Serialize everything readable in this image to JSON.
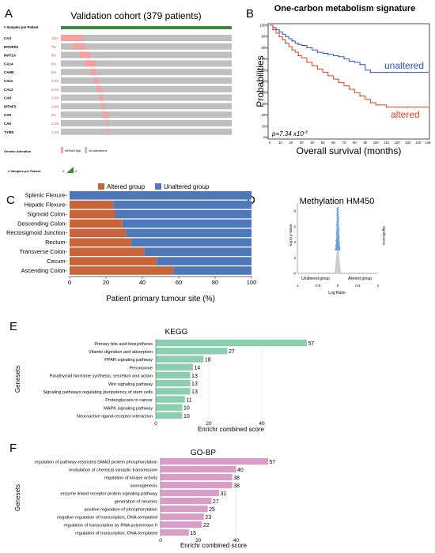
{
  "panel_labels": {
    "a": "A",
    "b": "B",
    "c": "C",
    "d": "D",
    "e": "E",
    "f": "F"
  },
  "colors": {
    "oncoprint_track": "#bfbfbf",
    "alteration": "#f4a0a0",
    "cohort_bar": "#3a8c3a",
    "altered": "#d9411e",
    "unaltered": "#2b52b5",
    "c_altered": "#c8643a",
    "c_unaltered": "#4f78b8",
    "d_points": "#6aa0d8",
    "d_funnel": "#cccccc",
    "kegg_bar": "#8ccfb0",
    "gobp_bar": "#d89ec8"
  },
  "chart_data": [
    {
      "panel": "A",
      "type": "table",
      "title": "Validation cohort (379 patients)",
      "header_label": "# Samples per Patient",
      "genes": [
        "CA3",
        "MTHFD2",
        "MAT1A",
        "CA14",
        "CA5B",
        "CA11",
        "CA12",
        "CA8",
        "MTHFS",
        "CA9",
        "CA6",
        "TYMS"
      ],
      "percentages": [
        "13%",
        "7%",
        "6%",
        "6%",
        "3%",
        "2.9%",
        "2.9%",
        "2.4%",
        "1.8%",
        "3%",
        "1.3%",
        "1.3%"
      ],
      "fractions": [
        0.13,
        0.07,
        0.06,
        0.06,
        0.03,
        0.029,
        0.029,
        0.024,
        0.018,
        0.03,
        0.013,
        0.013
      ],
      "legend_title": "Genetic Alteration",
      "legend_items": [
        "mRNA High",
        "No alterations"
      ],
      "samples_legend": "# Samples per Patient",
      "samples_min": "0",
      "samples_max": "2"
    },
    {
      "panel": "B",
      "type": "line",
      "title": "One-carbon metabolism signature",
      "ylabel": "Probabilities",
      "xlabel": "Overall survival (months)",
      "pvalue": "p=7.34 x10",
      "pvalue_exp": "-3",
      "x_ticks": [
        "0",
        "10",
        "20",
        "30",
        "40",
        "50",
        "60",
        "70",
        "80",
        "90",
        "100",
        "110",
        "120",
        "130",
        "140",
        "149"
      ],
      "y_ticks": [
        "0%",
        "10%",
        "20%",
        "30%",
        "40%",
        "50%",
        "60%",
        "70%",
        "80%",
        "90%",
        "100%"
      ],
      "xlim": [
        0,
        149
      ],
      "ylim": [
        0,
        100
      ],
      "series": [
        {
          "name": "unaltered",
          "points": [
            [
              0,
              100
            ],
            [
              3,
              98
            ],
            [
              6,
              96
            ],
            [
              9,
              94
            ],
            [
              12,
              92
            ],
            [
              15,
              90
            ],
            [
              18,
              88
            ],
            [
              21,
              86
            ],
            [
              24,
              84
            ],
            [
              27,
              83
            ],
            [
              30,
              82
            ],
            [
              35,
              80
            ],
            [
              40,
              78
            ],
            [
              45,
              76
            ],
            [
              50,
              75
            ],
            [
              55,
              74
            ],
            [
              60,
              73
            ],
            [
              65,
              72
            ],
            [
              70,
              70
            ],
            [
              75,
              68
            ],
            [
              80,
              67
            ],
            [
              85,
              65
            ],
            [
              90,
              60
            ],
            [
              95,
              58
            ],
            [
              100,
              58
            ],
            [
              110,
              58
            ],
            [
              120,
              58
            ],
            [
              130,
              58
            ],
            [
              140,
              58
            ],
            [
              149,
              58
            ]
          ]
        },
        {
          "name": "altered",
          "points": [
            [
              0,
              100
            ],
            [
              3,
              96
            ],
            [
              6,
              93
            ],
            [
              9,
              90
            ],
            [
              12,
              87
            ],
            [
              15,
              84
            ],
            [
              18,
              81
            ],
            [
              21,
              78
            ],
            [
              24,
              76
            ],
            [
              27,
              73
            ],
            [
              30,
              71
            ],
            [
              35,
              67
            ],
            [
              40,
              64
            ],
            [
              45,
              61
            ],
            [
              50,
              58
            ],
            [
              55,
              55
            ],
            [
              60,
              52
            ],
            [
              65,
              49
            ],
            [
              70,
              46
            ],
            [
              75,
              43
            ],
            [
              80,
              40
            ],
            [
              85,
              37
            ],
            [
              90,
              34
            ],
            [
              95,
              31
            ],
            [
              100,
              29
            ],
            [
              110,
              27
            ],
            [
              120,
              27
            ],
            [
              130,
              27
            ],
            [
              140,
              27
            ],
            [
              149,
              27
            ]
          ]
        }
      ]
    },
    {
      "panel": "C",
      "type": "bar",
      "xlabel": "Patient primary tumour site (%)",
      "categories": [
        "Splenic Flexure",
        "Hepatic Flexure",
        "Sigmoid Colon",
        "Descending Colon",
        "Rectosigmoid Junction",
        "Rectum",
        "Transverse Colon",
        "Cecum",
        "Ascending Colon"
      ],
      "series": [
        {
          "name": "Altered group",
          "values": [
            0,
            24,
            25,
            29,
            31,
            34,
            41,
            48,
            57
          ]
        },
        {
          "name": "Unaltered group",
          "values": [
            100,
            76,
            75,
            71,
            69,
            66,
            59,
            52,
            43
          ]
        }
      ],
      "x_ticks": [
        "0",
        "20",
        "40",
        "60",
        "80",
        "100"
      ],
      "xlim": [
        0,
        100
      ]
    },
    {
      "panel": "D",
      "type": "scatter",
      "title": "Methylation HM450",
      "ylabel": "-log10 p-Value",
      "xlabel": "Log Ratio",
      "right_label": "Significance",
      "left_group": "Unaltered group",
      "right_group": "Altered group",
      "x_ticks": [
        "-1",
        "-0.5",
        "0",
        "0.5",
        "1"
      ],
      "y_ticks": [
        "0",
        "2",
        "4",
        "6",
        "8"
      ],
      "xlim": [
        -1,
        1
      ],
      "ylim": [
        0,
        9
      ]
    },
    {
      "panel": "E",
      "type": "bar",
      "title": "KEGG",
      "ylabel": "Genesets",
      "xlabel": "Enrichr combined score",
      "categories": [
        "Primary bile acid biosynthesis",
        "Vitamin digestion and absorption",
        "PPAR signaling pathway",
        "Peroxisome",
        "Parathyroid hormone synthesis, secretion and action",
        "Wnt signaling pathway",
        "Signaling pathways regulating pluripotency of stem cells",
        "Proteoglycans in cancer",
        "MAPK signaling pathway",
        "Neuroactive ligand-receptor interaction"
      ],
      "values": [
        57,
        27,
        18,
        14,
        13,
        13,
        13,
        11,
        10,
        10
      ],
      "x_ticks": [
        "0",
        "20",
        "40"
      ],
      "xlim": [
        0,
        57
      ]
    },
    {
      "panel": "F",
      "type": "bar",
      "title": "GO-BP",
      "ylabel": "Genesets",
      "xlabel": "Enrichr combined score",
      "categories": [
        "regulation of pathway-restricted SMAD protein phosphorylation",
        "modulation of chemical synaptic transmission",
        "regulation of kinase activity",
        "axonogenesis",
        "enzyme linked receptor protein signaling pathway",
        "generation of neurons",
        "positive regulation of phosphorylation",
        "negative regulation of transcription, DNA-templated",
        "regulation of transcription by RNA polymerase II",
        "regulation of transcription, DNA-templated"
      ],
      "values": [
        57,
        40,
        38,
        38,
        31,
        27,
        25,
        23,
        22,
        15
      ],
      "x_ticks": [
        "0",
        "20",
        "40"
      ],
      "xlim": [
        0,
        57
      ]
    }
  ]
}
